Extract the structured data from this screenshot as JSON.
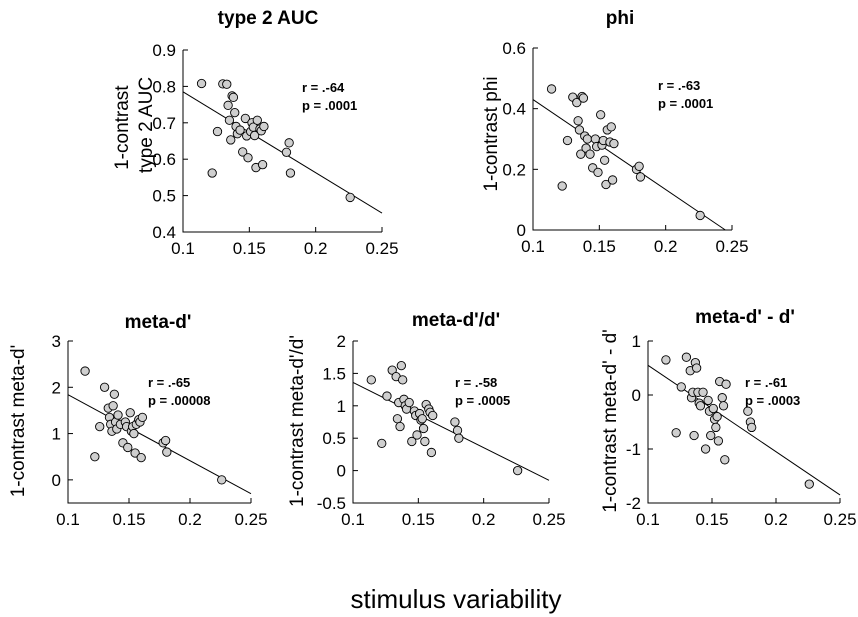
{
  "figure": {
    "xlabel": "stimulus variability"
  },
  "chart_data": [
    {
      "type": "scatter",
      "title": "type 2 AUC",
      "ylabel_lines": [
        "1-contrast",
        "type 2 AUC"
      ],
      "xlim": [
        0.1,
        0.25
      ],
      "ylim": [
        0.4,
        0.9
      ],
      "xticks": [
        "0.1",
        "0.15",
        "0.2",
        "0.25"
      ],
      "yticks": [
        "0.4",
        "0.5",
        "0.6",
        "0.7",
        "0.8",
        "0.9"
      ],
      "stats": {
        "r": "r = .-64",
        "p": "p = .0001"
      },
      "fit": {
        "x": [
          0.1,
          0.25
        ],
        "y": [
          0.785,
          0.452
        ]
      },
      "points": [
        [
          0.114,
          0.808
        ],
        [
          0.122,
          0.562
        ],
        [
          0.126,
          0.676
        ],
        [
          0.13,
          0.807
        ],
        [
          0.133,
          0.806
        ],
        [
          0.134,
          0.748
        ],
        [
          0.135,
          0.707
        ],
        [
          0.136,
          0.653
        ],
        [
          0.137,
          0.774
        ],
        [
          0.138,
          0.77
        ],
        [
          0.139,
          0.728
        ],
        [
          0.14,
          0.69
        ],
        [
          0.141,
          0.67
        ],
        [
          0.143,
          0.68
        ],
        [
          0.145,
          0.62
        ],
        [
          0.147,
          0.712
        ],
        [
          0.148,
          0.664
        ],
        [
          0.149,
          0.604
        ],
        [
          0.151,
          0.676
        ],
        [
          0.152,
          0.7
        ],
        [
          0.153,
          0.688
        ],
        [
          0.154,
          0.665
        ],
        [
          0.155,
          0.577
        ],
        [
          0.156,
          0.707
        ],
        [
          0.158,
          0.683
        ],
        [
          0.159,
          0.678
        ],
        [
          0.16,
          0.585
        ],
        [
          0.161,
          0.69
        ],
        [
          0.178,
          0.619
        ],
        [
          0.18,
          0.645
        ],
        [
          0.181,
          0.562
        ],
        [
          0.226,
          0.495
        ]
      ]
    },
    {
      "type": "scatter",
      "title": "phi",
      "ylabel_lines": [
        "1-contrast phi"
      ],
      "xlim": [
        0.1,
        0.25
      ],
      "ylim": [
        0,
        0.6
      ],
      "xticks": [
        "0.1",
        "0.15",
        "0.2",
        "0.25"
      ],
      "yticks": [
        "0",
        "0.2",
        "0.4",
        "0.6"
      ],
      "stats": {
        "r": "r = .-63",
        "p": "p = .0001"
      },
      "fit": {
        "x": [
          0.1,
          0.245
        ],
        "y": [
          0.43,
          0.0
        ]
      },
      "points": [
        [
          0.114,
          0.465
        ],
        [
          0.122,
          0.145
        ],
        [
          0.126,
          0.295
        ],
        [
          0.13,
          0.438
        ],
        [
          0.133,
          0.42
        ],
        [
          0.134,
          0.36
        ],
        [
          0.135,
          0.33
        ],
        [
          0.136,
          0.25
        ],
        [
          0.137,
          0.44
        ],
        [
          0.138,
          0.435
        ],
        [
          0.139,
          0.31
        ],
        [
          0.14,
          0.27
        ],
        [
          0.141,
          0.3
        ],
        [
          0.143,
          0.25
        ],
        [
          0.145,
          0.205
        ],
        [
          0.147,
          0.3
        ],
        [
          0.148,
          0.275
        ],
        [
          0.149,
          0.19
        ],
        [
          0.151,
          0.38
        ],
        [
          0.152,
          0.28
        ],
        [
          0.153,
          0.295
        ],
        [
          0.154,
          0.23
        ],
        [
          0.155,
          0.15
        ],
        [
          0.156,
          0.33
        ],
        [
          0.158,
          0.29
        ],
        [
          0.159,
          0.34
        ],
        [
          0.16,
          0.165
        ],
        [
          0.161,
          0.285
        ],
        [
          0.178,
          0.2
        ],
        [
          0.18,
          0.21
        ],
        [
          0.181,
          0.175
        ],
        [
          0.226,
          0.048
        ]
      ]
    },
    {
      "type": "scatter",
      "title": "meta-d'",
      "ylabel_lines": [
        "1-contrast meta-d'"
      ],
      "xlim": [
        0.1,
        0.25
      ],
      "ylim": [
        -0.5,
        3
      ],
      "xticks": [
        "0.1",
        "0.15",
        "0.2",
        "0.25"
      ],
      "yticks": [
        "0",
        "1",
        "2",
        "3"
      ],
      "stats": {
        "r": "r = .-65",
        "p": "p = .00008"
      },
      "fit": {
        "x": [
          0.1,
          0.25
        ],
        "y": [
          1.84,
          -0.3
        ]
      },
      "points": [
        [
          0.114,
          2.35
        ],
        [
          0.122,
          0.5
        ],
        [
          0.126,
          1.15
        ],
        [
          0.13,
          2.0
        ],
        [
          0.133,
          1.55
        ],
        [
          0.134,
          1.35
        ],
        [
          0.135,
          1.2
        ],
        [
          0.136,
          1.05
        ],
        [
          0.137,
          1.6
        ],
        [
          0.138,
          1.85
        ],
        [
          0.139,
          1.25
        ],
        [
          0.14,
          1.1
        ],
        [
          0.141,
          1.4
        ],
        [
          0.143,
          1.2
        ],
        [
          0.145,
          0.8
        ],
        [
          0.147,
          1.25
        ],
        [
          0.148,
          1.15
        ],
        [
          0.149,
          0.7
        ],
        [
          0.151,
          1.45
        ],
        [
          0.152,
          1.05
        ],
        [
          0.153,
          1.15
        ],
        [
          0.154,
          1.0
        ],
        [
          0.155,
          0.58
        ],
        [
          0.156,
          1.2
        ],
        [
          0.158,
          1.3
        ],
        [
          0.159,
          1.25
        ],
        [
          0.16,
          0.48
        ],
        [
          0.161,
          1.35
        ],
        [
          0.178,
          0.8
        ],
        [
          0.18,
          0.85
        ],
        [
          0.181,
          0.6
        ],
        [
          0.226,
          0.0
        ]
      ]
    },
    {
      "type": "scatter",
      "title": "meta-d'/d'",
      "ylabel_lines": [
        "1-contrast meta-d'/d'"
      ],
      "xlim": [
        0.1,
        0.25
      ],
      "ylim": [
        -0.5,
        2
      ],
      "xticks": [
        "0.1",
        "0.15",
        "0.2",
        "0.25"
      ],
      "yticks": [
        "-0.5",
        "0",
        "0.5",
        "1",
        "1.5",
        "2"
      ],
      "stats": {
        "r": "r = .-58",
        "p": "p = .0005"
      },
      "fit": {
        "x": [
          0.1,
          0.25
        ],
        "y": [
          1.36,
          -0.15
        ]
      },
      "points": [
        [
          0.114,
          1.4
        ],
        [
          0.122,
          0.42
        ],
        [
          0.126,
          1.15
        ],
        [
          0.13,
          1.55
        ],
        [
          0.133,
          1.45
        ],
        [
          0.134,
          0.8
        ],
        [
          0.135,
          1.05
        ],
        [
          0.136,
          0.68
        ],
        [
          0.137,
          1.62
        ],
        [
          0.138,
          1.4
        ],
        [
          0.139,
          1.1
        ],
        [
          0.14,
          1.0
        ],
        [
          0.141,
          0.95
        ],
        [
          0.143,
          1.05
        ],
        [
          0.145,
          0.45
        ],
        [
          0.147,
          0.92
        ],
        [
          0.148,
          0.85
        ],
        [
          0.149,
          0.55
        ],
        [
          0.151,
          0.88
        ],
        [
          0.152,
          0.78
        ],
        [
          0.153,
          0.8
        ],
        [
          0.154,
          0.65
        ],
        [
          0.155,
          0.45
        ],
        [
          0.156,
          1.02
        ],
        [
          0.158,
          0.95
        ],
        [
          0.159,
          0.9
        ],
        [
          0.16,
          0.28
        ],
        [
          0.161,
          0.85
        ],
        [
          0.178,
          0.75
        ],
        [
          0.18,
          0.62
        ],
        [
          0.181,
          0.5
        ],
        [
          0.226,
          0.0
        ]
      ]
    },
    {
      "type": "scatter",
      "title": "meta-d' - d'",
      "ylabel_lines": [
        "1-contrast meta-d' - d'"
      ],
      "xlim": [
        0.1,
        0.25
      ],
      "ylim": [
        -2,
        1
      ],
      "xticks": [
        "0.1",
        "0.15",
        "0.2",
        "0.25"
      ],
      "yticks": [
        "-2",
        "-1",
        "0",
        "1"
      ],
      "stats": {
        "r": "r = .-61",
        "p": "p = .0003"
      },
      "fit": {
        "x": [
          0.1,
          0.25
        ],
        "y": [
          0.55,
          -1.85
        ]
      },
      "points": [
        [
          0.114,
          0.65
        ],
        [
          0.122,
          -0.7
        ],
        [
          0.126,
          0.15
        ],
        [
          0.13,
          0.7
        ],
        [
          0.133,
          0.45
        ],
        [
          0.134,
          -0.05
        ],
        [
          0.135,
          0.05
        ],
        [
          0.136,
          -0.75
        ],
        [
          0.137,
          0.6
        ],
        [
          0.138,
          0.5
        ],
        [
          0.139,
          0.05
        ],
        [
          0.14,
          -0.15
        ],
        [
          0.141,
          -0.2
        ],
        [
          0.143,
          0.05
        ],
        [
          0.145,
          -1.0
        ],
        [
          0.147,
          -0.1
        ],
        [
          0.148,
          -0.3
        ],
        [
          0.149,
          -0.75
        ],
        [
          0.151,
          -0.25
        ],
        [
          0.152,
          -0.45
        ],
        [
          0.153,
          -0.6
        ],
        [
          0.154,
          -0.4
        ],
        [
          0.155,
          -0.85
        ],
        [
          0.156,
          0.25
        ],
        [
          0.158,
          -0.05
        ],
        [
          0.159,
          -0.2
        ],
        [
          0.16,
          -1.2
        ],
        [
          0.161,
          0.2
        ],
        [
          0.178,
          -0.3
        ],
        [
          0.18,
          -0.5
        ],
        [
          0.181,
          -0.6
        ],
        [
          0.226,
          -1.65
        ]
      ]
    }
  ]
}
